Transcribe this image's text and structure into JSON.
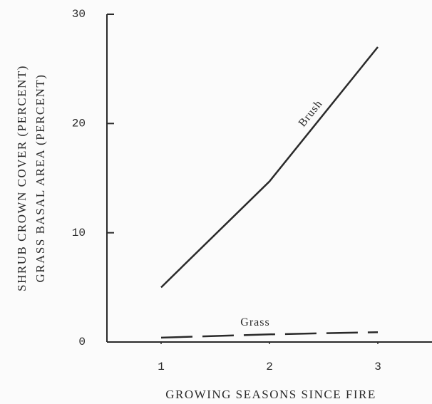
{
  "chart_data": {
    "type": "line",
    "y_label_lines": [
      "SHRUB CROWN COVER (PERCENT)",
      "GRASS BASAL AREA (PERCENT)"
    ],
    "x_label": "GROWING SEASONS SINCE FIRE",
    "x": [
      1,
      2,
      3
    ],
    "series": [
      {
        "name": "Brush",
        "color": "#2a2a2a",
        "dashed": false,
        "values": [
          5,
          14.7,
          27
        ]
      },
      {
        "name": "Grass",
        "color": "#2a2a2a",
        "dashed": true,
        "values": [
          0.4,
          0.7,
          0.9
        ]
      }
    ],
    "xlim": [
      0.5,
      3.5
    ],
    "xticks": [
      1,
      2,
      3
    ],
    "ylim": [
      0,
      30
    ],
    "yticks": [
      0,
      10,
      20,
      30
    ],
    "grid": false
  }
}
